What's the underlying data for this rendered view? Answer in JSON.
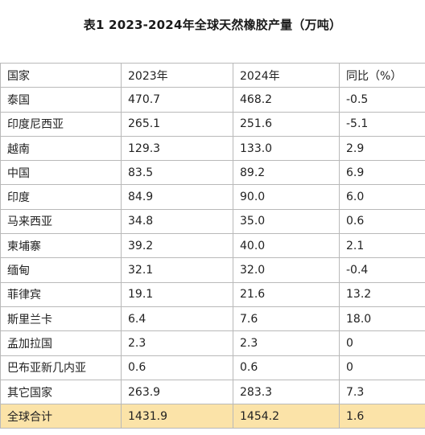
{
  "title": "表1 2023-2024年全球天然橡胶产量（万吨）",
  "table": {
    "headers": [
      "国家",
      "2023年",
      "2024年",
      "同比（%）"
    ],
    "rows": [
      [
        "泰国",
        "470.7",
        "468.2",
        "-0.5"
      ],
      [
        "印度尼西亚",
        "265.1",
        "251.6",
        "-5.1"
      ],
      [
        "越南",
        "129.3",
        "133.0",
        "2.9"
      ],
      [
        "中国",
        "83.5",
        "89.2",
        "6.9"
      ],
      [
        "印度",
        "84.9",
        "90.0",
        "6.0"
      ],
      [
        "马来西亚",
        "34.8",
        "35.0",
        "0.6"
      ],
      [
        "柬埔寨",
        "39.2",
        "40.0",
        "2.1"
      ],
      [
        "缅甸",
        "32.1",
        "32.0",
        "-0.4"
      ],
      [
        "菲律宾",
        "19.1",
        "21.6",
        "13.2"
      ],
      [
        "斯里兰卡",
        "6.4",
        "7.6",
        "18.0"
      ],
      [
        "孟加拉国",
        "2.3",
        "2.3",
        "0"
      ],
      [
        "巴布亚新几内亚",
        "0.6",
        "0.6",
        "0"
      ],
      [
        "其它国家",
        "263.9",
        "283.3",
        "7.3"
      ]
    ],
    "total": [
      "全球合计",
      "1431.9",
      "1454.2",
      "1.6"
    ]
  },
  "colors": {
    "total_row_background": "#fbe3a8",
    "grid_line": "#b9b9b9"
  }
}
